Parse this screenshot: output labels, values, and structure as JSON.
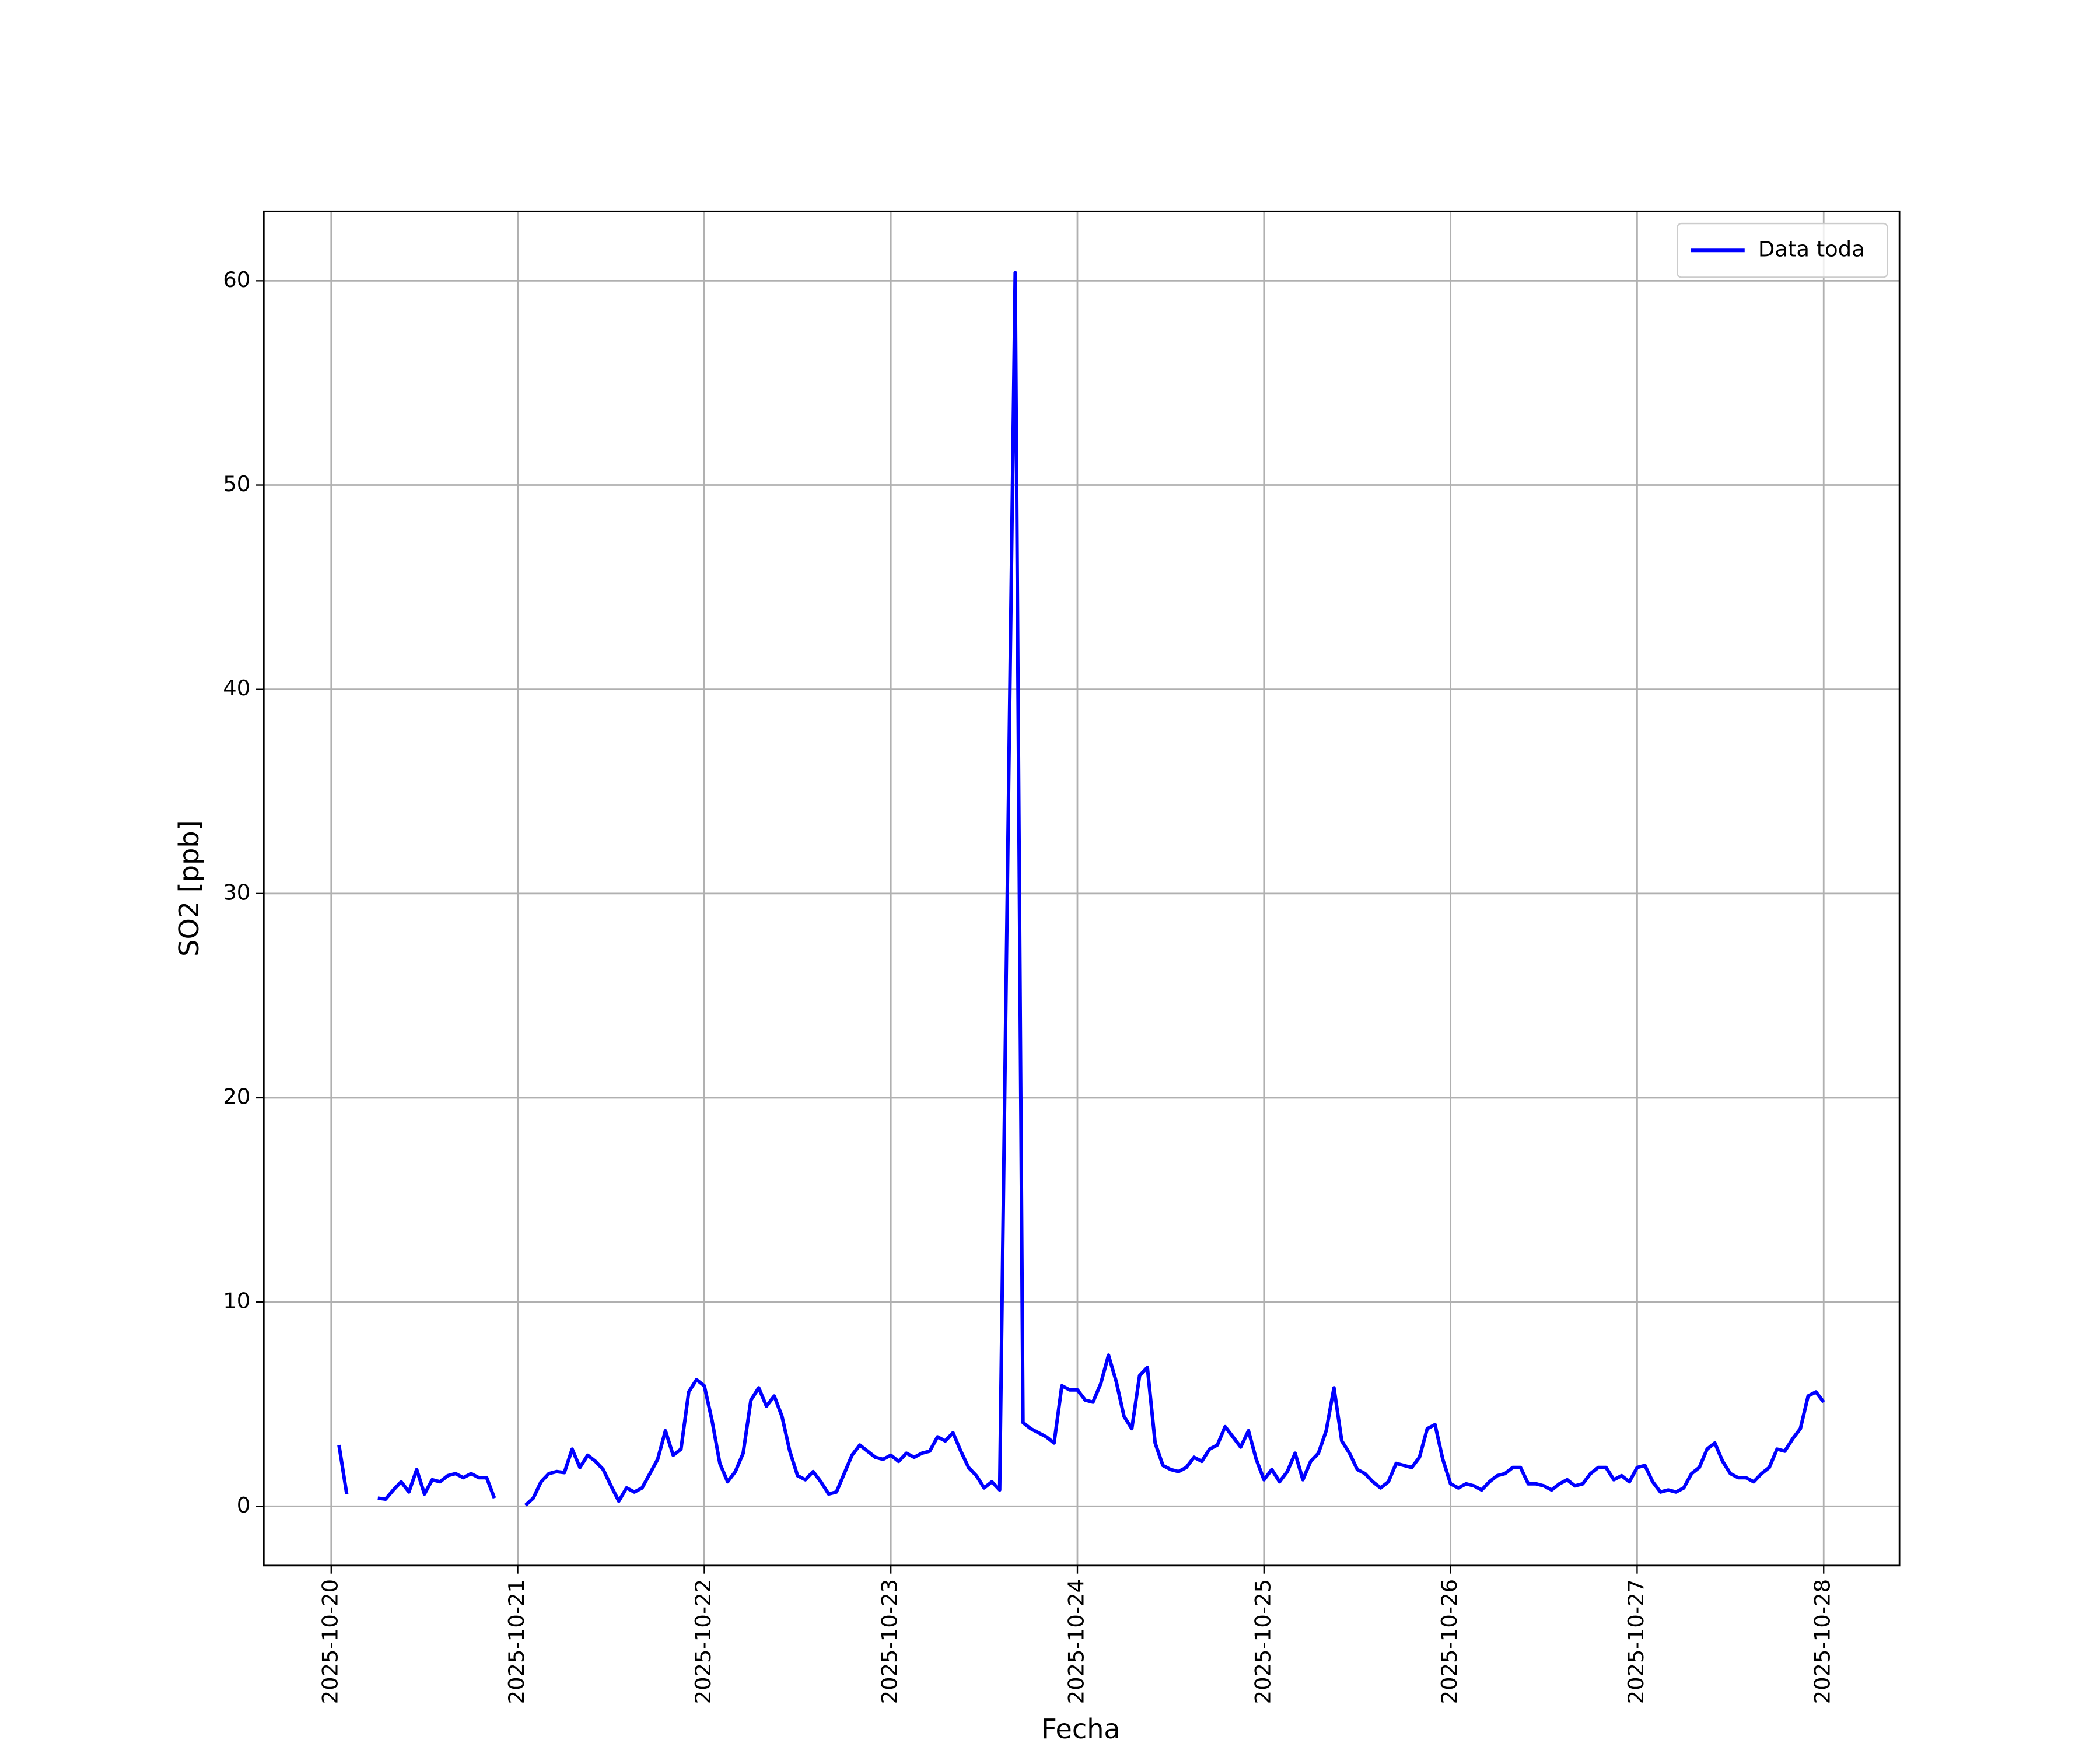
{
  "chart_data": {
    "type": "line",
    "x": [
      "2025-10-20 01:00",
      "2025-10-20 02:00",
      "2025-10-20 03:00",
      "2025-10-20 04:00",
      "2025-10-20 05:00",
      "2025-10-20 06:00",
      "2025-10-20 07:00",
      "2025-10-20 08:00",
      "2025-10-20 09:00",
      "2025-10-20 10:00",
      "2025-10-20 11:00",
      "2025-10-20 12:00",
      "2025-10-20 13:00",
      "2025-10-20 14:00",
      "2025-10-20 15:00",
      "2025-10-20 16:00",
      "2025-10-20 17:00",
      "2025-10-20 18:00",
      "2025-10-20 19:00",
      "2025-10-20 20:00",
      "2025-10-20 21:00",
      "2025-10-20 22:00",
      "2025-10-20 23:00",
      "2025-10-21 00:00",
      "2025-10-21 01:00",
      "2025-10-21 02:00",
      "2025-10-21 03:00",
      "2025-10-21 04:00",
      "2025-10-21 05:00",
      "2025-10-21 06:00",
      "2025-10-21 07:00",
      "2025-10-21 08:00",
      "2025-10-21 09:00",
      "2025-10-21 10:00",
      "2025-10-21 11:00",
      "2025-10-21 12:00",
      "2025-10-21 13:00",
      "2025-10-21 14:00",
      "2025-10-21 15:00",
      "2025-10-21 16:00",
      "2025-10-21 17:00",
      "2025-10-21 18:00",
      "2025-10-21 19:00",
      "2025-10-21 20:00",
      "2025-10-21 21:00",
      "2025-10-21 22:00",
      "2025-10-21 23:00",
      "2025-10-22 00:00",
      "2025-10-22 01:00",
      "2025-10-22 02:00",
      "2025-10-22 03:00",
      "2025-10-22 04:00",
      "2025-10-22 05:00",
      "2025-10-22 06:00",
      "2025-10-22 07:00",
      "2025-10-22 08:00",
      "2025-10-22 09:00",
      "2025-10-22 10:00",
      "2025-10-22 11:00",
      "2025-10-22 12:00",
      "2025-10-22 13:00",
      "2025-10-22 14:00",
      "2025-10-22 15:00",
      "2025-10-22 16:00",
      "2025-10-22 17:00",
      "2025-10-22 18:00",
      "2025-10-22 19:00",
      "2025-10-22 20:00",
      "2025-10-22 21:00",
      "2025-10-22 22:00",
      "2025-10-22 23:00",
      "2025-10-23 00:00",
      "2025-10-23 01:00",
      "2025-10-23 02:00",
      "2025-10-23 03:00",
      "2025-10-23 04:00",
      "2025-10-23 05:00",
      "2025-10-23 06:00",
      "2025-10-23 07:00",
      "2025-10-23 08:00",
      "2025-10-23 09:00",
      "2025-10-23 10:00",
      "2025-10-23 11:00",
      "2025-10-23 12:00",
      "2025-10-23 13:00",
      "2025-10-23 14:00",
      "2025-10-23 15:00",
      "2025-10-23 16:00",
      "2025-10-23 17:00",
      "2025-10-23 18:00",
      "2025-10-23 19:00",
      "2025-10-23 20:00",
      "2025-10-23 21:00",
      "2025-10-23 22:00",
      "2025-10-23 23:00",
      "2025-10-24 00:00",
      "2025-10-24 01:00",
      "2025-10-24 02:00",
      "2025-10-24 03:00",
      "2025-10-24 04:00",
      "2025-10-24 05:00",
      "2025-10-24 06:00",
      "2025-10-24 07:00",
      "2025-10-24 08:00",
      "2025-10-24 09:00",
      "2025-10-24 10:00",
      "2025-10-24 11:00",
      "2025-10-24 12:00",
      "2025-10-24 13:00",
      "2025-10-24 14:00",
      "2025-10-24 15:00",
      "2025-10-24 16:00",
      "2025-10-24 17:00",
      "2025-10-24 18:00",
      "2025-10-24 19:00",
      "2025-10-24 20:00",
      "2025-10-24 21:00",
      "2025-10-24 22:00",
      "2025-10-24 23:00",
      "2025-10-25 00:00",
      "2025-10-25 01:00",
      "2025-10-25 02:00",
      "2025-10-25 03:00",
      "2025-10-25 04:00",
      "2025-10-25 05:00",
      "2025-10-25 06:00",
      "2025-10-25 07:00",
      "2025-10-25 08:00",
      "2025-10-25 09:00",
      "2025-10-25 10:00",
      "2025-10-25 11:00",
      "2025-10-25 12:00",
      "2025-10-25 13:00",
      "2025-10-25 14:00",
      "2025-10-25 15:00",
      "2025-10-25 16:00",
      "2025-10-25 17:00",
      "2025-10-25 18:00",
      "2025-10-25 19:00",
      "2025-10-25 20:00",
      "2025-10-25 21:00",
      "2025-10-25 22:00",
      "2025-10-25 23:00",
      "2025-10-26 00:00",
      "2025-10-26 01:00",
      "2025-10-26 02:00",
      "2025-10-26 03:00",
      "2025-10-26 04:00",
      "2025-10-26 05:00",
      "2025-10-26 06:00",
      "2025-10-26 07:00",
      "2025-10-26 08:00",
      "2025-10-26 09:00",
      "2025-10-26 10:00",
      "2025-10-26 11:00",
      "2025-10-26 12:00",
      "2025-10-26 13:00",
      "2025-10-26 14:00",
      "2025-10-26 15:00",
      "2025-10-26 16:00",
      "2025-10-26 17:00",
      "2025-10-26 18:00",
      "2025-10-26 19:00",
      "2025-10-26 20:00",
      "2025-10-26 21:00",
      "2025-10-26 22:00",
      "2025-10-26 23:00",
      "2025-10-27 00:00",
      "2025-10-27 01:00",
      "2025-10-27 02:00",
      "2025-10-27 03:00",
      "2025-10-27 04:00",
      "2025-10-27 05:00",
      "2025-10-27 06:00",
      "2025-10-27 07:00",
      "2025-10-27 08:00",
      "2025-10-27 09:00",
      "2025-10-27 10:00",
      "2025-10-27 11:00",
      "2025-10-27 12:00",
      "2025-10-27 13:00",
      "2025-10-27 14:00",
      "2025-10-27 15:00",
      "2025-10-27 16:00",
      "2025-10-27 17:00",
      "2025-10-27 18:00",
      "2025-10-27 19:00",
      "2025-10-27 20:00",
      "2025-10-27 21:00",
      "2025-10-27 22:00",
      "2025-10-27 23:00",
      "2025-10-28 00:00"
    ],
    "series": [
      {
        "name": "Data toda",
        "color": "#0000ff",
        "values": [
          3.0,
          0.6,
          null,
          null,
          null,
          0.4,
          0.35,
          0.8,
          1.2,
          0.7,
          1.8,
          0.6,
          1.3,
          1.2,
          1.5,
          1.6,
          1.4,
          1.6,
          1.4,
          1.4,
          0.4,
          null,
          null,
          null,
          0.05,
          0.4,
          1.2,
          1.6,
          1.7,
          1.65,
          2.8,
          1.9,
          2.5,
          2.2,
          1.8,
          1.0,
          0.25,
          0.9,
          0.7,
          0.9,
          1.6,
          2.3,
          3.7,
          2.5,
          2.8,
          5.6,
          6.2,
          5.9,
          4.2,
          2.1,
          1.2,
          1.7,
          2.6,
          5.2,
          5.8,
          4.9,
          5.4,
          4.4,
          2.7,
          1.5,
          1.3,
          1.7,
          1.2,
          0.6,
          0.7,
          1.6,
          2.5,
          3.0,
          2.7,
          2.4,
          2.3,
          2.5,
          2.2,
          2.6,
          2.4,
          2.6,
          2.7,
          3.4,
          3.2,
          3.6,
          2.7,
          1.9,
          1.5,
          0.9,
          1.2,
          0.8,
          30.6,
          60.4,
          4.1,
          3.8,
          3.6,
          3.4,
          3.1,
          5.9,
          5.7,
          5.7,
          5.2,
          5.1,
          6.0,
          7.4,
          6.1,
          4.4,
          3.8,
          6.4,
          6.8,
          3.1,
          2.0,
          1.8,
          1.7,
          1.9,
          2.4,
          2.2,
          2.8,
          3.0,
          3.9,
          3.4,
          2.9,
          3.7,
          2.3,
          1.3,
          1.8,
          1.2,
          1.7,
          2.6,
          1.3,
          2.2,
          2.6,
          3.7,
          5.8,
          3.2,
          2.6,
          1.8,
          1.6,
          1.2,
          0.9,
          1.2,
          2.1,
          2.0,
          1.9,
          2.4,
          3.8,
          4.0,
          2.3,
          1.1,
          0.9,
          1.1,
          1.0,
          0.8,
          1.2,
          1.5,
          1.6,
          1.9,
          1.9,
          1.1,
          1.1,
          1.0,
          0.8,
          1.1,
          1.3,
          1.0,
          1.1,
          1.6,
          1.9,
          1.9,
          1.3,
          1.5,
          1.2,
          1.9,
          2.0,
          1.2,
          0.7,
          0.8,
          0.7,
          0.9,
          1.6,
          1.9,
          2.8,
          3.1,
          2.2,
          1.6,
          1.4,
          1.4,
          1.2,
          1.6,
          1.9,
          2.8,
          2.7,
          3.3,
          3.8,
          5.4,
          5.6,
          5.1
        ]
      }
    ],
    "xlabel": "Fecha",
    "ylabel": "SO2 [ppb]",
    "xlim": [
      "2025-10-19 15:20",
      "2025-10-28 09:45"
    ],
    "xticks": [
      "2025-10-20",
      "2025-10-21",
      "2025-10-22",
      "2025-10-23",
      "2025-10-24",
      "2025-10-25",
      "2025-10-26",
      "2025-10-27",
      "2025-10-28"
    ],
    "ylim": [
      -2.9,
      63.4
    ],
    "yticks": [
      0,
      10,
      20,
      30,
      40,
      50,
      60
    ],
    "grid": true,
    "legend": "upper right"
  }
}
